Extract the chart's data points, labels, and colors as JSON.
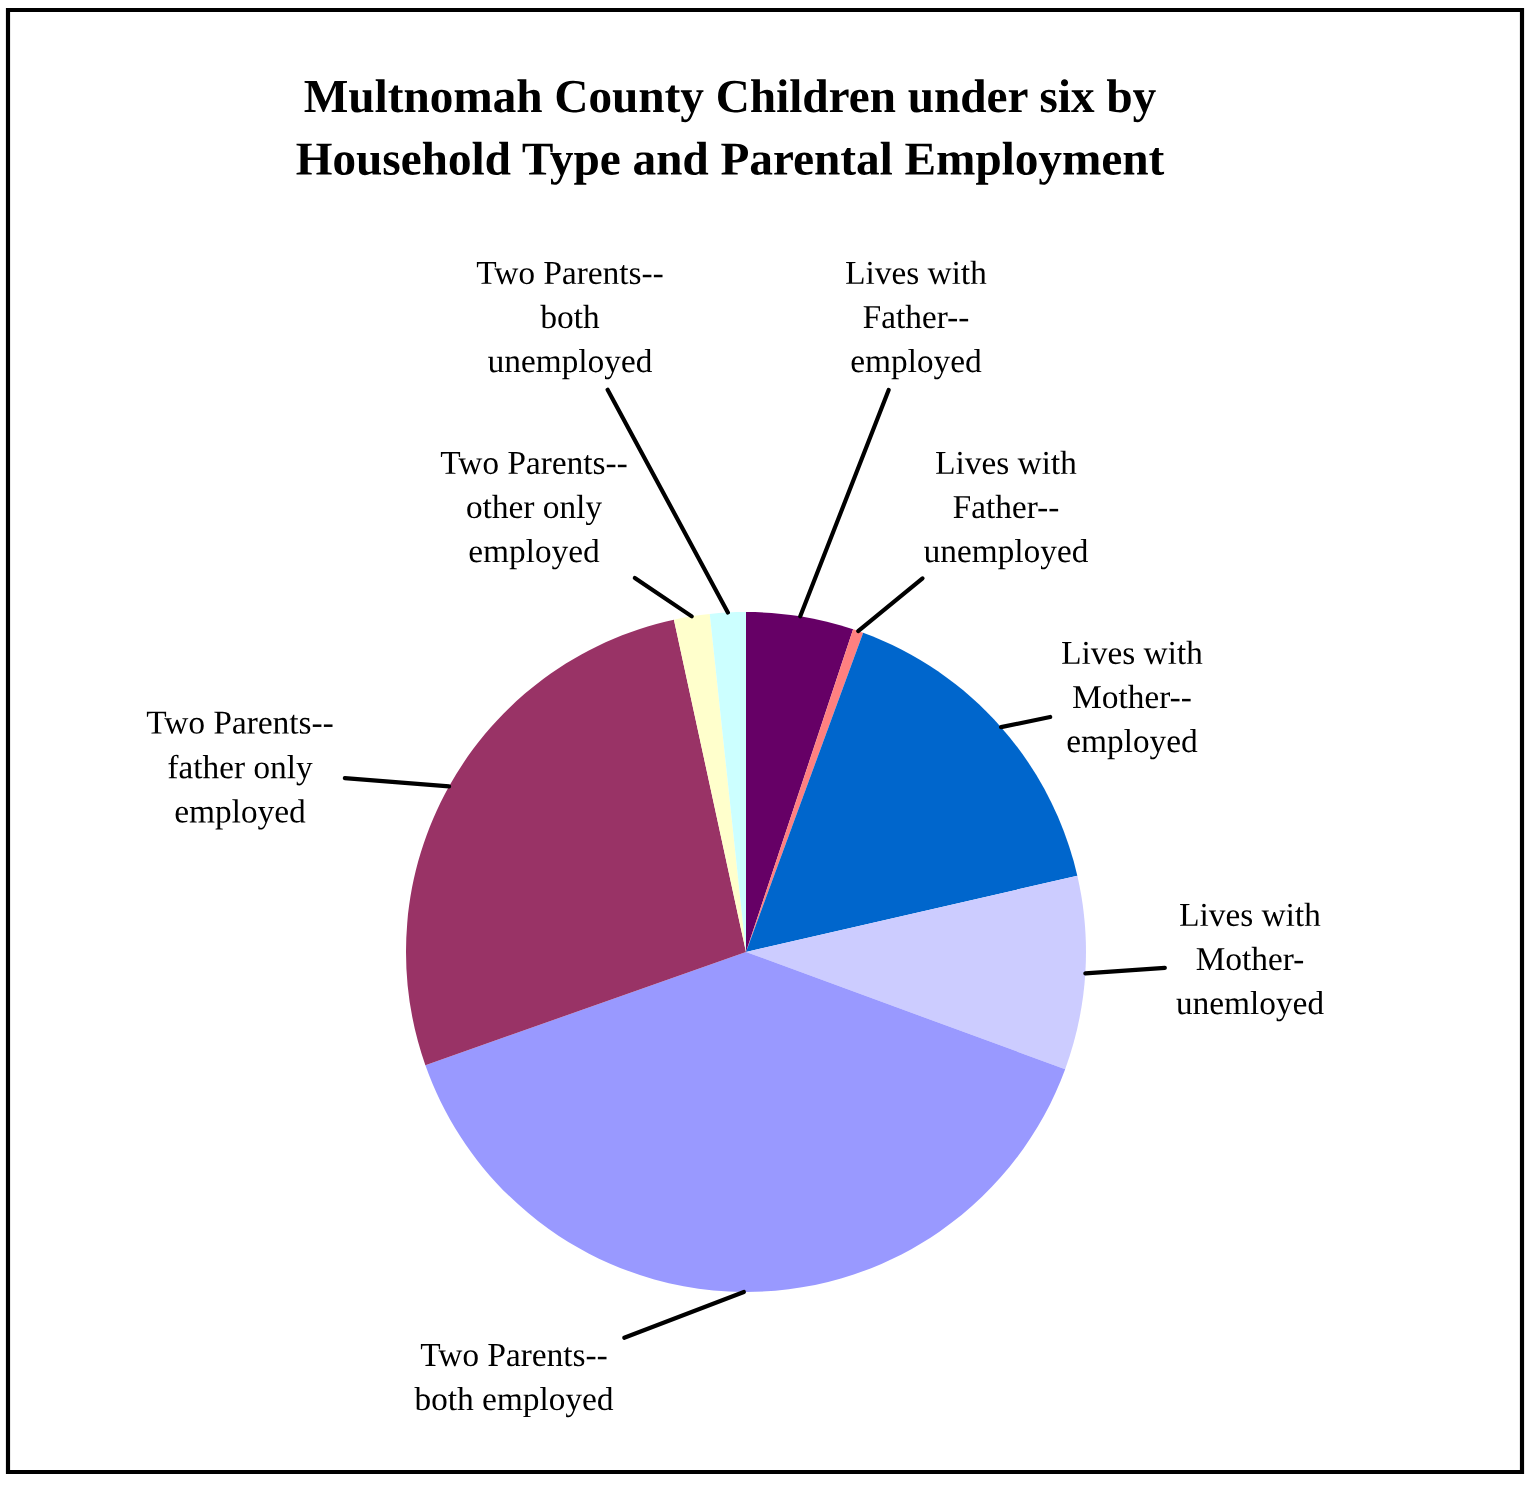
{
  "chart_data": {
    "type": "pie",
    "title": "Multnomah County Children under six by\nHousehold Type and Parental Employment",
    "categories": [
      "Lives with\nFather--\nemployed",
      "Lives with\nFather--\nunemployed",
      "Lives with\nMother--\nemployed",
      "Lives with\nMother-\nunemloyed",
      "Two Parents--\nboth employed",
      "Two Parents--\nfather only\nemployed",
      "Two Parents--\nother only\nemployed",
      "Two Parents--\nboth\nunemployed"
    ],
    "values": [
      5.1,
      0.5,
      15.8,
      9.2,
      39.0,
      27.0,
      1.7,
      1.7
    ],
    "colors": [
      "#660066",
      "#ff8080",
      "#0066cc",
      "#ccccff",
      "#9999ff",
      "#993366",
      "#ffffcc",
      "#ccffff"
    ],
    "legend": false
  }
}
